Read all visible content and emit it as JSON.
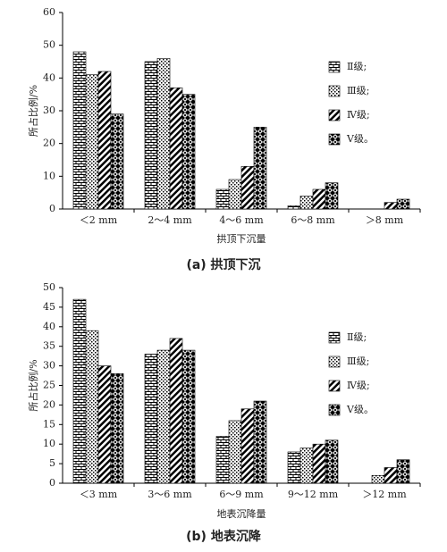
{
  "chart_data": [
    {
      "type": "bar",
      "x_label": "拱顶下沉量",
      "y_label": "所占比例/%",
      "caption": "(a) 拱顶下沉",
      "categories": [
        "＜2 mm",
        "2～4 mm",
        "4～6 mm",
        "6～8 mm",
        "＞8 mm"
      ],
      "series": [
        {
          "name": "Ⅱ级;",
          "values": [
            48,
            45,
            6,
            1,
            0
          ]
        },
        {
          "name": "Ⅲ级;",
          "values": [
            41,
            46,
            9,
            4,
            0
          ]
        },
        {
          "name": "Ⅳ级;",
          "values": [
            42,
            37,
            13,
            6,
            2
          ]
        },
        {
          "name": "Ⅴ级。",
          "values": [
            29,
            35,
            25,
            8,
            3
          ]
        }
      ],
      "ylim": [
        0,
        60
      ],
      "yticks": [
        0,
        10,
        20,
        30,
        40,
        50,
        60
      ]
    },
    {
      "type": "bar",
      "x_label": "地表沉降量",
      "y_label": "所占比例/%",
      "caption": "(b) 地表沉降",
      "categories": [
        "＜3 mm",
        "3～6 mm",
        "6～9 mm",
        "9～12 mm",
        "＞12 mm"
      ],
      "series": [
        {
          "name": "Ⅱ级;",
          "values": [
            47,
            33,
            12,
            8,
            0
          ]
        },
        {
          "name": "Ⅲ级;",
          "values": [
            39,
            34,
            16,
            9,
            2
          ]
        },
        {
          "name": "Ⅳ级;",
          "values": [
            30,
            37,
            19,
            10,
            4
          ]
        },
        {
          "name": "Ⅴ级。",
          "values": [
            28,
            34,
            21,
            11,
            6
          ]
        }
      ],
      "ylim": [
        0,
        50
      ],
      "yticks": [
        0,
        5,
        10,
        15,
        20,
        25,
        30,
        35,
        40,
        45,
        50
      ]
    }
  ]
}
